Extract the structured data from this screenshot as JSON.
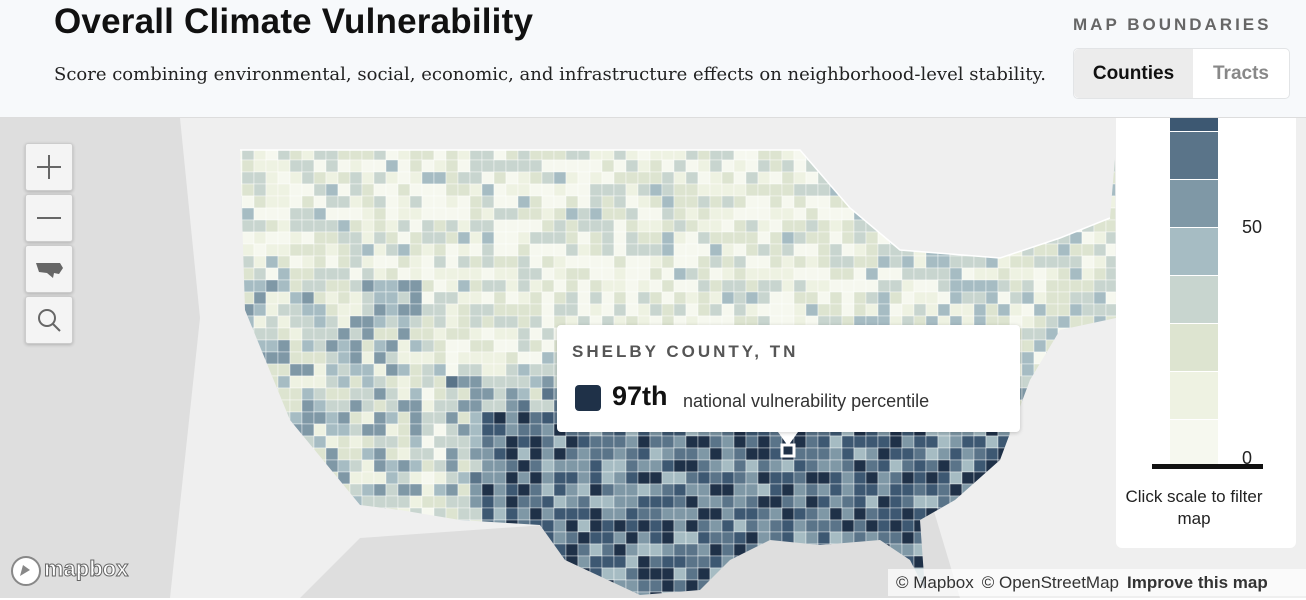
{
  "header": {
    "title": "Overall Climate Vulnerability",
    "subtitle": "Score combining environmental, social, economic, and infrastructure effects on neighborhood-level stability."
  },
  "boundaries": {
    "label": "MAP BOUNDARIES",
    "options": [
      "Counties",
      "Tracts"
    ]
  },
  "legend": {
    "labels": [
      "50",
      "0"
    ],
    "note": "Click scale to filter map"
  },
  "tooltip": {
    "place": "SHELBY COUNTY, TN",
    "rank": "97th",
    "description": "national vulnerability percentile"
  },
  "attribution": {
    "logo": "mapbox",
    "sources": [
      "© Mapbox",
      "© OpenStreetMap"
    ],
    "link": "Improve this map"
  }
}
